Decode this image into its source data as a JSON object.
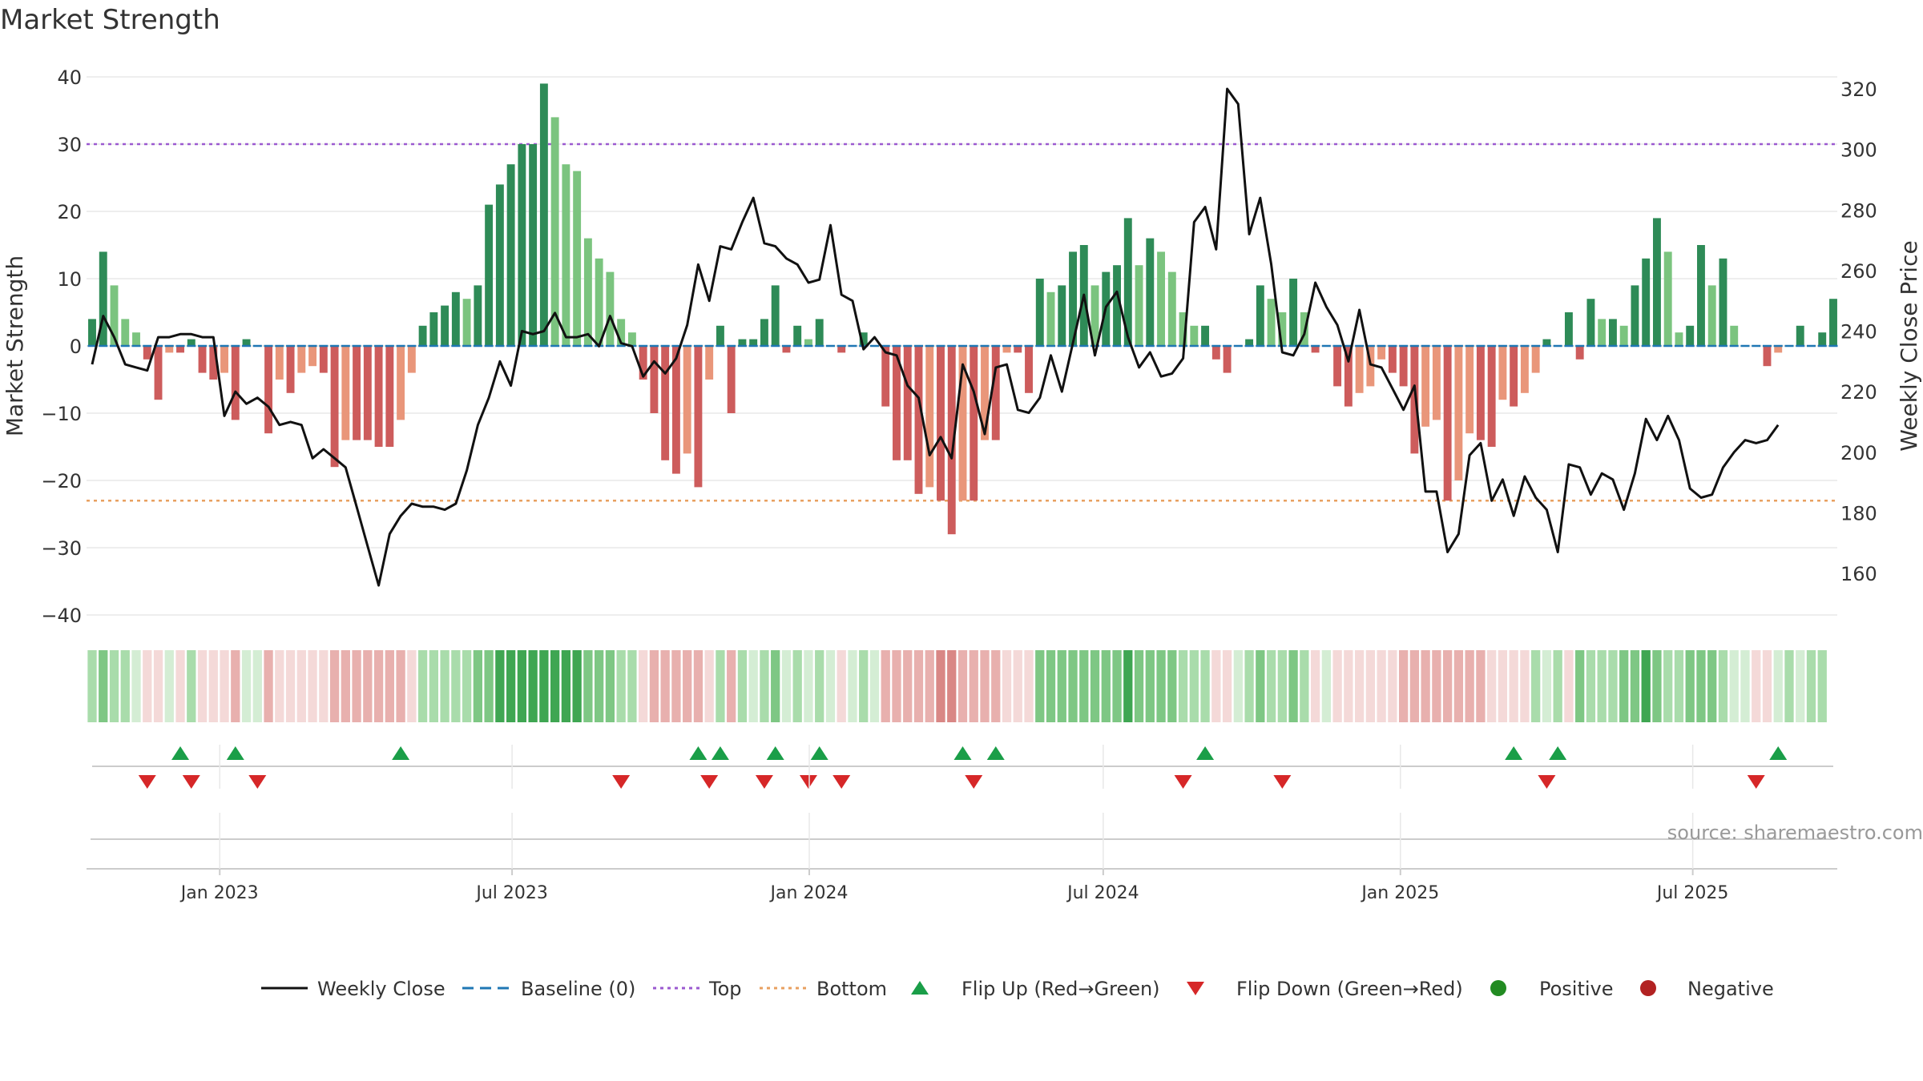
{
  "chart_data": {
    "type": "bar+line",
    "title": "Market Strength",
    "ylabel_left": "Market Strength",
    "ylabel_right": "Weekly Close Price",
    "source": "source: sharemaestro.com",
    "ylim_left": [
      -43,
      41
    ],
    "ylim_right": [
      147,
      327
    ],
    "yticks_left": [
      40,
      30,
      20,
      10,
      0,
      -10,
      -20,
      -30,
      -40
    ],
    "yticks_left_labels": [
      "40",
      "30",
      "20",
      "10",
      "0",
      "−10",
      "−20",
      "−30",
      "−40"
    ],
    "yticks_right": [
      320,
      300,
      280,
      260,
      240,
      220,
      200,
      180,
      160
    ],
    "yticks_right_labels": [
      "320",
      "300",
      "280",
      "260",
      "240",
      "220",
      "200",
      "180",
      "160"
    ],
    "x_start": "2022-10-14",
    "x_end": "2025-09-26",
    "x_ticks": [
      {
        "label": "Jan 2023",
        "date": "2023-01-01"
      },
      {
        "label": "Jul 2023",
        "date": "2023-07-01"
      },
      {
        "label": "Jan 2024",
        "date": "2024-01-01"
      },
      {
        "label": "Jul 2024",
        "date": "2024-07-01"
      },
      {
        "label": "Jan 2025",
        "date": "2025-01-01"
      },
      {
        "label": "Jul 2025",
        "date": "2025-07-01"
      }
    ],
    "reference_lines": {
      "top": 30,
      "bottom": -23,
      "baseline": 0
    },
    "strength": [
      4,
      14,
      9,
      4,
      2,
      -2,
      -8,
      -1,
      -1,
      1,
      -4,
      -5,
      -4,
      -11,
      1,
      0,
      -13,
      -5,
      -7,
      -4,
      -3,
      -4,
      -18,
      -14,
      -14,
      -14,
      -15,
      -15,
      -11,
      -4,
      3,
      5,
      6,
      8,
      7,
      9,
      21,
      24,
      27,
      30,
      30,
      39,
      34,
      27,
      26,
      16,
      13,
      11,
      4,
      2,
      -5,
      -10,
      -17,
      -19,
      -16,
      -21,
      -5,
      3,
      -10,
      1,
      1,
      4,
      9,
      -1,
      3,
      1,
      4,
      0,
      -1,
      0,
      2,
      0,
      -9,
      -17,
      -17,
      -22,
      -21,
      -23,
      -28,
      -23,
      -23,
      -14,
      -14,
      -1,
      -1,
      -7,
      10,
      8,
      9,
      14,
      15,
      9,
      11,
      12,
      19,
      12,
      16,
      14,
      11,
      5,
      3,
      3,
      -2,
      -4,
      0,
      1,
      9,
      7,
      5,
      10,
      5,
      -1,
      0,
      -6,
      -9,
      -7,
      -6,
      -2,
      -4,
      -6,
      -16,
      -12,
      -11,
      -23,
      -20,
      -13,
      -14,
      -15,
      -8,
      -9,
      -7,
      -4,
      1,
      0,
      5,
      -2,
      7,
      4,
      4,
      3,
      9,
      13,
      19,
      14,
      2,
      3,
      15,
      9,
      13,
      3,
      0,
      0,
      -3,
      -1,
      0,
      3,
      0,
      2,
      7
    ],
    "close": [
      229,
      245,
      238,
      229,
      228,
      227,
      238,
      238,
      239,
      239,
      238,
      238,
      212,
      220,
      216,
      218,
      215,
      209,
      210,
      209,
      198,
      201,
      198,
      195,
      182,
      169,
      156,
      173,
      179,
      183,
      182,
      182,
      181,
      183,
      194,
      209,
      218,
      230,
      222,
      240,
      239,
      240,
      246,
      238,
      238,
      239,
      235,
      245,
      236,
      235,
      225,
      230,
      226,
      231,
      242,
      262,
      250,
      268,
      267,
      276,
      284,
      269,
      268,
      264,
      262,
      256,
      257,
      275,
      252,
      250,
      234,
      238,
      233,
      232,
      222,
      218,
      199,
      205,
      198,
      229,
      220,
      206,
      228,
      229,
      214,
      213,
      218,
      232,
      220,
      236,
      252,
      232,
      248,
      253,
      238,
      228,
      233,
      225,
      226,
      231,
      276,
      281,
      267,
      320,
      315,
      272,
      284,
      262,
      233,
      232,
      239,
      256,
      248,
      242,
      230,
      247,
      229,
      228,
      221,
      214,
      222,
      187,
      187,
      167,
      173,
      199,
      203,
      184,
      191,
      179,
      192,
      185,
      181,
      167,
      196,
      195,
      186,
      193,
      191,
      181,
      193,
      211,
      204,
      212,
      204,
      188,
      185,
      186,
      195,
      200,
      204,
      203,
      204,
      209
    ],
    "heat_shades": [
      1,
      2,
      1,
      1,
      0,
      -1,
      -1,
      0,
      -1,
      1,
      -1,
      -1,
      -1,
      -2,
      0,
      0,
      -2,
      -1,
      -1,
      -1,
      -1,
      -1,
      -2,
      -2,
      -2,
      -2,
      -2,
      -2,
      -2,
      -1,
      1,
      1,
      1,
      1,
      1,
      2,
      2,
      3,
      3,
      3,
      3,
      4,
      4,
      3,
      3,
      2,
      2,
      2,
      1,
      1,
      -1,
      -2,
      -2,
      -2,
      -2,
      -2,
      -1,
      1,
      -2,
      1,
      0,
      1,
      2,
      0,
      1,
      0,
      1,
      0,
      -1,
      0,
      1,
      0,
      -2,
      -2,
      -2,
      -2,
      -2,
      -3,
      -3,
      -2,
      -2,
      -2,
      -2,
      -1,
      -1,
      -1,
      2,
      2,
      2,
      2,
      2,
      2,
      2,
      2,
      3,
      2,
      2,
      2,
      2,
      1,
      1,
      1,
      -1,
      -1,
      0,
      1,
      2,
      1,
      1,
      2,
      1,
      -1,
      0,
      -1,
      -1,
      -1,
      -1,
      -1,
      -1,
      -2,
      -2,
      -2,
      -2,
      -2,
      -2,
      -2,
      -2,
      -1,
      -1,
      -1,
      -1,
      1,
      0,
      1,
      -1,
      2,
      1,
      1,
      1,
      2,
      2,
      3,
      2,
      1,
      1,
      2,
      2,
      2,
      1,
      0,
      0,
      -1,
      -1,
      0,
      1,
      0,
      1,
      1
    ],
    "flip_up_weeks": [
      8,
      13,
      28,
      55,
      57,
      62,
      66,
      79,
      82,
      101,
      129,
      133,
      153
    ],
    "flip_down_weeks": [
      5,
      9,
      15,
      48,
      56,
      61,
      65,
      68,
      80,
      99,
      108,
      132,
      151
    ],
    "legend": [
      "Weekly Close",
      "Baseline (0)",
      "Top",
      "Bottom",
      "Flip Up (Red→Green)",
      "Flip Down (Green→Red)",
      "Positive",
      "Negative"
    ],
    "colors": {
      "pos_dark": "#2e8b57",
      "pos_light": "#7bc47f",
      "neg_dark": "#cd5c5c",
      "neg_light": "#e9967a",
      "line": "#111111",
      "baseline": "#1f77b4",
      "top": "#9b59d0",
      "bottom": "#e8a060",
      "flip_up": "#1a9e48",
      "flip_down": "#d62728",
      "positive_dot": "#228b22",
      "negative_dot": "#b22222",
      "grid": "#e8e8e8",
      "axis": "#cccccc",
      "heat_neg": [
        "#f4d9d8",
        "#e8b0ae",
        "#d98785"
      ],
      "heat_pos": [
        "#d4edd4",
        "#a9dcab",
        "#7ec784",
        "#3fa652"
      ]
    }
  }
}
